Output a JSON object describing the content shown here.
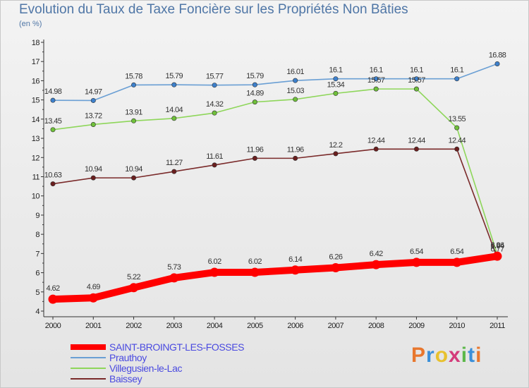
{
  "title": "Evolution du Taux de Taxe Foncière sur les Propriétés Non Bâties",
  "unit": "(en %)",
  "logo": {
    "text": "Proxiti",
    "colors": [
      "#e8772e",
      "#3a8fd9",
      "#e8c12e",
      "#d43b7a",
      "#5cb84a",
      "#3a8fd9",
      "#e8772e"
    ]
  },
  "chart_data": {
    "type": "line",
    "title": "Evolution du Taux de Taxe Foncière sur les Propriétés Non Bâties",
    "ylabel": "(en %)",
    "xlabel": "",
    "categories": [
      "2000",
      "2001",
      "2002",
      "2003",
      "2004",
      "2005",
      "2006",
      "2007",
      "2008",
      "2009",
      "2010",
      "2011"
    ],
    "ylim": [
      4,
      18
    ],
    "yticks": [
      4,
      5,
      6,
      7,
      8,
      9,
      10,
      11,
      12,
      13,
      14,
      15,
      16,
      17,
      18
    ],
    "grid": false,
    "legend_position": "bottom-left",
    "series": [
      {
        "name": "SAINT-BROINGT-LES-FOSSES",
        "color": "#ff0000",
        "marker": "#ff0000",
        "values": [
          4.62,
          4.69,
          5.22,
          5.73,
          6.02,
          6.02,
          6.14,
          6.26,
          6.42,
          6.54,
          6.54,
          6.86
        ],
        "labels": [
          "4.62",
          "4.69",
          "5.22",
          "5.73",
          "6.02",
          "6.02",
          "6.14",
          "6.26",
          "6.42",
          "6.54",
          "6.54",
          "6.86"
        ]
      },
      {
        "name": "Prauthoy",
        "color": "#6a9fd4",
        "marker": "#3d80cc",
        "values": [
          14.98,
          14.97,
          15.78,
          15.79,
          15.77,
          15.79,
          16.01,
          16.1,
          16.1,
          16.1,
          16.1,
          16.88
        ],
        "labels": [
          "14.98",
          "14.97",
          "15.78",
          "15.79",
          "15.77",
          "15.79",
          "16.01",
          "16.1",
          "16.1",
          "16.1",
          "16.1",
          "16.88"
        ]
      },
      {
        "name": "Villegusien-le-Lac",
        "color": "#8ed65a",
        "marker": "#6fc03a",
        "values": [
          13.45,
          13.72,
          13.91,
          14.04,
          14.32,
          14.89,
          15.03,
          15.34,
          15.57,
          15.57,
          13.55,
          6.94
        ],
        "labels": [
          "13.45",
          "13.72",
          "13.91",
          "14.04",
          "14.32",
          "14.89",
          "15.03",
          "15.34",
          "15.57",
          "15.57",
          "13.55",
          "6.94"
        ]
      },
      {
        "name": "Baissey",
        "color": "#7a2a2a",
        "marker": "#6a1e1e",
        "values": [
          10.63,
          10.94,
          10.94,
          11.27,
          11.61,
          11.96,
          11.96,
          12.2,
          12.44,
          12.44,
          12.44,
          6.77
        ],
        "labels": [
          "10.63",
          "10.94",
          "10.94",
          "11.27",
          "11.61",
          "11.96",
          "11.96",
          "12.2",
          "12.44",
          "12.44",
          "12.44",
          "6.77"
        ]
      }
    ]
  }
}
